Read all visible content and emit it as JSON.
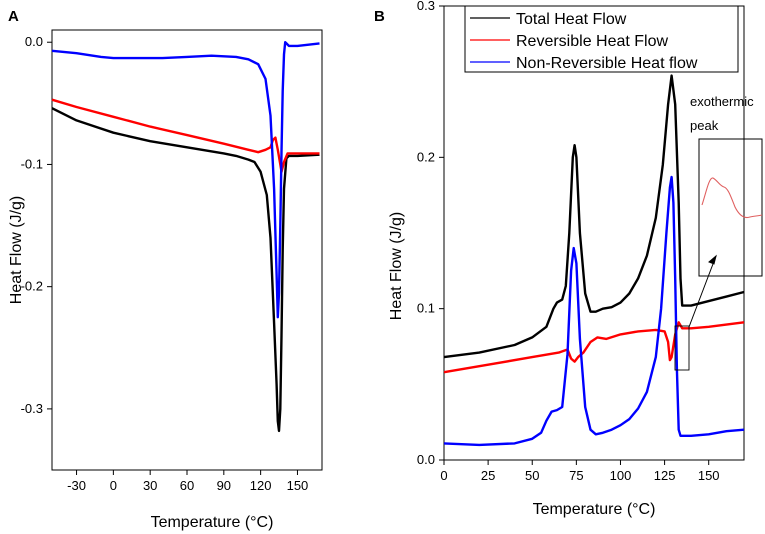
{
  "colors": {
    "total": "#000000",
    "reversible": "#ff0000",
    "nonreversible": "#0000ff",
    "inset": "#e06060"
  },
  "panel_labels": {
    "a": "A",
    "b": "B"
  },
  "chart_data": [
    {
      "type": "line",
      "panel": "A",
      "xlabel": "Temperature (°C)",
      "ylabel": "Heat Flow (J/g)",
      "xlim": [
        -50,
        170
      ],
      "ylim": [
        -0.35,
        0.01
      ],
      "xticks": [
        -30,
        0,
        30,
        60,
        90,
        120,
        150
      ],
      "yticks": [
        0.0,
        -0.1,
        -0.2,
        -0.3
      ],
      "ytick_labels": [
        "0.0",
        "-0.1",
        "-0.2",
        "-0.3"
      ],
      "series": [
        {
          "name": "Total Heat Flow",
          "color_key": "total",
          "points": [
            [
              -50,
              -0.054
            ],
            [
              -30,
              -0.064
            ],
            [
              0,
              -0.074
            ],
            [
              30,
              -0.081
            ],
            [
              60,
              -0.086
            ],
            [
              90,
              -0.091
            ],
            [
              100,
              -0.093
            ],
            [
              110,
              -0.096
            ],
            [
              115,
              -0.098
            ],
            [
              120,
              -0.106
            ],
            [
              125,
              -0.125
            ],
            [
              128,
              -0.16
            ],
            [
              131,
              -0.23
            ],
            [
              133,
              -0.28
            ],
            [
              134,
              -0.31
            ],
            [
              135,
              -0.318
            ],
            [
              136,
              -0.3
            ],
            [
              137,
              -0.24
            ],
            [
              138,
              -0.17
            ],
            [
              139,
              -0.12
            ],
            [
              141,
              -0.095
            ],
            [
              143,
              -0.093
            ],
            [
              150,
              -0.093
            ],
            [
              168,
              -0.092
            ]
          ]
        },
        {
          "name": "Reversible Heat Flow",
          "color_key": "reversible",
          "points": [
            [
              -50,
              -0.047
            ],
            [
              -30,
              -0.053
            ],
            [
              0,
              -0.061
            ],
            [
              30,
              -0.069
            ],
            [
              60,
              -0.076
            ],
            [
              90,
              -0.083
            ],
            [
              110,
              -0.088
            ],
            [
              118,
              -0.09
            ],
            [
              124,
              -0.088
            ],
            [
              128,
              -0.086
            ],
            [
              130,
              -0.08
            ],
            [
              132,
              -0.078
            ],
            [
              134,
              -0.088
            ],
            [
              136,
              -0.1
            ],
            [
              137,
              -0.106
            ],
            [
              139,
              -0.098
            ],
            [
              142,
              -0.091
            ],
            [
              150,
              -0.091
            ],
            [
              168,
              -0.091
            ]
          ]
        },
        {
          "name": "Non-Reversible Heat flow",
          "color_key": "nonreversible",
          "points": [
            [
              -50,
              -0.007
            ],
            [
              -30,
              -0.009
            ],
            [
              -10,
              -0.012
            ],
            [
              0,
              -0.013
            ],
            [
              20,
              -0.013
            ],
            [
              40,
              -0.013
            ],
            [
              60,
              -0.012
            ],
            [
              80,
              -0.011
            ],
            [
              100,
              -0.012
            ],
            [
              110,
              -0.014
            ],
            [
              118,
              -0.018
            ],
            [
              124,
              -0.03
            ],
            [
              128,
              -0.06
            ],
            [
              131,
              -0.12
            ],
            [
              133,
              -0.19
            ],
            [
              134,
              -0.225
            ],
            [
              135,
              -0.205
            ],
            [
              136,
              -0.15
            ],
            [
              137,
              -0.09
            ],
            [
              138,
              -0.04
            ],
            [
              139,
              -0.01
            ],
            [
              140,
              0.0
            ],
            [
              141,
              -0.001
            ],
            [
              143,
              -0.003
            ],
            [
              150,
              -0.003
            ],
            [
              168,
              -0.001
            ]
          ]
        }
      ]
    },
    {
      "type": "line",
      "panel": "B",
      "xlabel": "Temperature (°C)",
      "ylabel": "Heat Flow (J/g)",
      "xlim": [
        0,
        170
      ],
      "ylim": [
        0,
        0.3
      ],
      "xticks": [
        0,
        25,
        50,
        75,
        100,
        125,
        150
      ],
      "yticks": [
        0.0,
        0.1,
        0.2,
        0.3
      ],
      "ytick_labels": [
        "0.0",
        "0.1",
        "0.2",
        "0.3"
      ],
      "legend": [
        "Total Heat Flow",
        "Reversible Heat Flow",
        "Non-Reversible Heat flow"
      ],
      "legend_position": "top",
      "annotation": {
        "line1": "exothermic",
        "line2": "peak"
      },
      "series": [
        {
          "name": "Total Heat Flow",
          "color_key": "total",
          "points": [
            [
              0,
              0.068
            ],
            [
              20,
              0.071
            ],
            [
              40,
              0.076
            ],
            [
              50,
              0.081
            ],
            [
              58,
              0.088
            ],
            [
              62,
              0.1
            ],
            [
              64,
              0.104
            ],
            [
              67,
              0.106
            ],
            [
              69,
              0.115
            ],
            [
              71,
              0.15
            ],
            [
              73,
              0.2
            ],
            [
              74,
              0.208
            ],
            [
              75,
              0.2
            ],
            [
              77,
              0.15
            ],
            [
              80,
              0.11
            ],
            [
              83,
              0.098
            ],
            [
              86,
              0.098
            ],
            [
              90,
              0.1
            ],
            [
              95,
              0.101
            ],
            [
              100,
              0.104
            ],
            [
              105,
              0.11
            ],
            [
              110,
              0.12
            ],
            [
              115,
              0.135
            ],
            [
              120,
              0.16
            ],
            [
              124,
              0.195
            ],
            [
              127,
              0.235
            ],
            [
              129,
              0.254
            ],
            [
              131,
              0.235
            ],
            [
              133,
              0.17
            ],
            [
              134,
              0.12
            ],
            [
              135,
              0.102
            ],
            [
              140,
              0.102
            ],
            [
              150,
              0.105
            ],
            [
              160,
              0.108
            ],
            [
              170,
              0.111
            ]
          ]
        },
        {
          "name": "Reversible Heat Flow",
          "color_key": "reversible",
          "points": [
            [
              0,
              0.058
            ],
            [
              25,
              0.063
            ],
            [
              50,
              0.068
            ],
            [
              65,
              0.071
            ],
            [
              70,
              0.073
            ],
            [
              72,
              0.067
            ],
            [
              74,
              0.065
            ],
            [
              76,
              0.068
            ],
            [
              79,
              0.071
            ],
            [
              83,
              0.078
            ],
            [
              87,
              0.081
            ],
            [
              92,
              0.08
            ],
            [
              100,
              0.083
            ],
            [
              110,
              0.085
            ],
            [
              120,
              0.086
            ],
            [
              125,
              0.085
            ],
            [
              127,
              0.078
            ],
            [
              128,
              0.066
            ],
            [
              129,
              0.068
            ],
            [
              131,
              0.083
            ],
            [
              133,
              0.091
            ],
            [
              135,
              0.087
            ],
            [
              140,
              0.087
            ],
            [
              150,
              0.088
            ],
            [
              170,
              0.091
            ]
          ]
        },
        {
          "name": "Non-Reversible Heat flow",
          "color_key": "nonreversible",
          "points": [
            [
              0,
              0.011
            ],
            [
              20,
              0.01
            ],
            [
              40,
              0.011
            ],
            [
              50,
              0.014
            ],
            [
              55,
              0.018
            ],
            [
              58,
              0.026
            ],
            [
              61,
              0.032
            ],
            [
              64,
              0.033
            ],
            [
              67,
              0.035
            ],
            [
              70,
              0.07
            ],
            [
              72,
              0.125
            ],
            [
              73.5,
              0.14
            ],
            [
              75,
              0.13
            ],
            [
              77,
              0.08
            ],
            [
              80,
              0.035
            ],
            [
              83,
              0.02
            ],
            [
              86,
              0.017
            ],
            [
              90,
              0.018
            ],
            [
              95,
              0.02
            ],
            [
              100,
              0.023
            ],
            [
              105,
              0.027
            ],
            [
              110,
              0.034
            ],
            [
              115,
              0.045
            ],
            [
              120,
              0.068
            ],
            [
              123,
              0.1
            ],
            [
              126,
              0.15
            ],
            [
              128,
              0.18
            ],
            [
              129,
              0.187
            ],
            [
              130,
              0.17
            ],
            [
              131,
              0.12
            ],
            [
              132,
              0.06
            ],
            [
              133,
              0.02
            ],
            [
              134,
              0.016
            ],
            [
              140,
              0.016
            ],
            [
              150,
              0.017
            ],
            [
              160,
              0.019
            ],
            [
              170,
              0.02
            ]
          ]
        }
      ]
    }
  ]
}
